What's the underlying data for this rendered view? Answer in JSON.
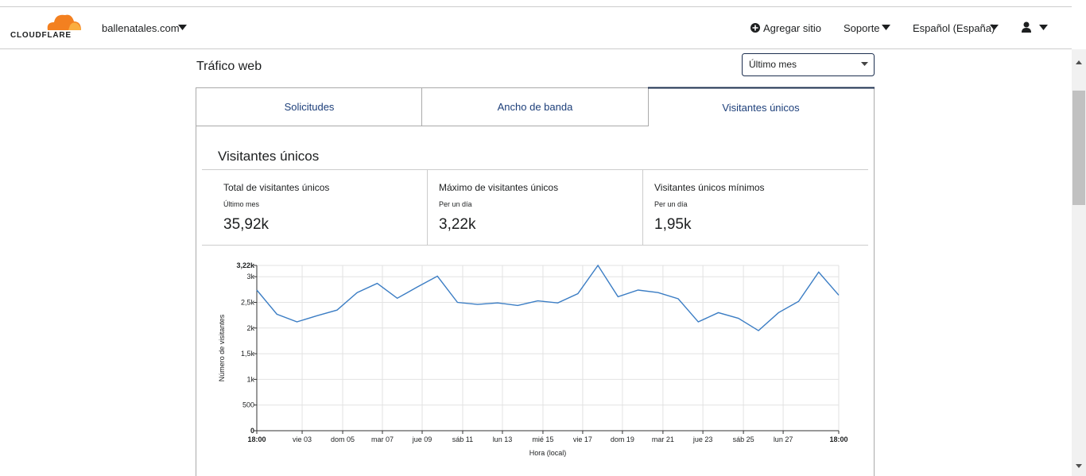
{
  "header": {
    "logo": "CLOUDFLARE",
    "domain": "ballenatales.com",
    "nav": [
      "Agregar sitio",
      "Soporte",
      "Español (España)"
    ]
  },
  "section_title": "Tráfico web",
  "range_select": "Último mes",
  "tabs": [
    "Solicitudes",
    "Ancho de banda",
    "Visitantes únicos"
  ],
  "card_title": "Visitantes únicos",
  "stats": [
    {
      "label": "Total de visitantes únicos",
      "period": "Último mes",
      "value": "35,92k"
    },
    {
      "label": "Máximo de visitantes únicos",
      "period": "Per un día",
      "value": "3,22k"
    },
    {
      "label": "Visitantes únicos mínimos",
      "period": "Per un día",
      "value": "1,95k"
    }
  ],
  "chart_data": {
    "type": "line",
    "ylabel": "Número de visitantes",
    "xlabel": "Hora (local)",
    "color": "#3b7dc4",
    "x": [
      0,
      1,
      2,
      3,
      4,
      5,
      6,
      7,
      8,
      9,
      10,
      11,
      12,
      13,
      14,
      15,
      16,
      17,
      18,
      19,
      20,
      21,
      22,
      23,
      24,
      25,
      26,
      27,
      28,
      29
    ],
    "values": [
      2740,
      2270,
      2120,
      2240,
      2350,
      2690,
      2870,
      2580,
      2800,
      3010,
      2500,
      2460,
      2490,
      2440,
      2530,
      2490,
      2670,
      3220,
      2610,
      2740,
      2690,
      2570,
      2120,
      2300,
      2190,
      1950,
      2300,
      2520,
      3090,
      2640
    ],
    "xlim": [
      0,
      29
    ],
    "xticks": [
      {
        "value": 0,
        "label": "18:00"
      },
      {
        "value": 2.26,
        "label": "vie 03"
      },
      {
        "value": 4.28,
        "label": "dom 05"
      },
      {
        "value": 6.26,
        "label": "mar 07"
      },
      {
        "value": 8.24,
        "label": "jue 09"
      },
      {
        "value": 10.26,
        "label": "sáb 11"
      },
      {
        "value": 12.24,
        "label": "lun 13"
      },
      {
        "value": 14.26,
        "label": "mié 15"
      },
      {
        "value": 16.24,
        "label": "vie 17"
      },
      {
        "value": 18.22,
        "label": "dom 19"
      },
      {
        "value": 20.24,
        "label": "mar 21"
      },
      {
        "value": 22.23,
        "label": "jue 23"
      },
      {
        "value": 24.25,
        "label": "sáb 25"
      },
      {
        "value": 26.23,
        "label": "lun 27"
      },
      {
        "value": 29,
        "label": "18:00"
      }
    ],
    "ylim": [
      0,
      3220
    ],
    "yticks": [
      0,
      500,
      {
        "value": 1000,
        "label": "1k"
      },
      {
        "value": 1500,
        "label": "1,5k"
      },
      {
        "value": 2000,
        "label": "2k"
      },
      {
        "value": 2500,
        "label": "2,5k"
      },
      {
        "value": 3000,
        "label": "3k"
      },
      {
        "value": 3220,
        "label": "3,22k"
      }
    ],
    "grid": true
  }
}
